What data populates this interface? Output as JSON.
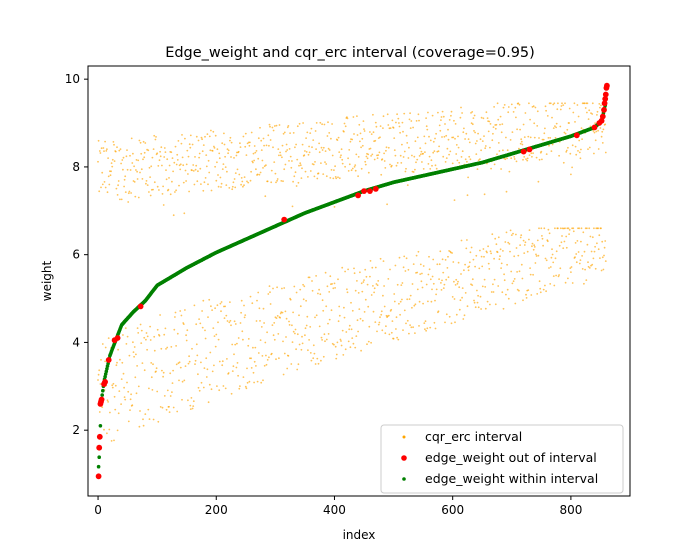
{
  "chart_data": {
    "type": "scatter",
    "title": "Edge_weight and cqr_erc interval (coverage=0.95)",
    "xlabel": "index",
    "ylabel": "weight",
    "xlim": [
      -17,
      900
    ],
    "ylim": [
      0.5,
      10.3
    ],
    "xticks": [
      0,
      200,
      400,
      600,
      800
    ],
    "yticks": [
      2,
      4,
      6,
      8,
      10
    ],
    "grid": false,
    "legend_position": "lower-right",
    "n_points": 860,
    "colors": {
      "interval": "#FFA500",
      "out": "#FF0000",
      "within": "#008000"
    },
    "series": [
      {
        "name": "cqr_erc interval",
        "marker": "dot",
        "color": "#FFA500",
        "alpha": 0.6
      },
      {
        "name": "edge_weight out of interval",
        "marker": "dot",
        "color": "#FF0000"
      },
      {
        "name": "edge_weight within interval",
        "marker": "dot",
        "color": "#008000"
      }
    ],
    "edge_weight_curve": [
      [
        0,
        0.95
      ],
      [
        3,
        1.6
      ],
      [
        5,
        2.6
      ],
      [
        10,
        3.1
      ],
      [
        20,
        3.7
      ],
      [
        40,
        4.4
      ],
      [
        60,
        4.7
      ],
      [
        80,
        4.95
      ],
      [
        100,
        5.3
      ],
      [
        150,
        5.7
      ],
      [
        200,
        6.05
      ],
      [
        250,
        6.35
      ],
      [
        300,
        6.65
      ],
      [
        350,
        6.95
      ],
      [
        400,
        7.2
      ],
      [
        450,
        7.45
      ],
      [
        500,
        7.65
      ],
      [
        550,
        7.8
      ],
      [
        600,
        7.95
      ],
      [
        650,
        8.1
      ],
      [
        700,
        8.3
      ],
      [
        750,
        8.5
      ],
      [
        800,
        8.7
      ],
      [
        840,
        8.9
      ],
      [
        852,
        9.05
      ],
      [
        858,
        9.4
      ],
      [
        860,
        9.85
      ]
    ],
    "out_of_interval": [
      [
        1,
        0.95
      ],
      [
        2,
        1.6
      ],
      [
        3,
        1.85
      ],
      [
        4,
        2.6
      ],
      [
        5,
        2.65
      ],
      [
        6,
        2.7
      ],
      [
        10,
        3.05
      ],
      [
        12,
        3.1
      ],
      [
        18,
        3.6
      ],
      [
        28,
        4.05
      ],
      [
        33,
        4.1
      ],
      [
        72,
        4.82
      ],
      [
        315,
        6.8
      ],
      [
        440,
        7.35
      ],
      [
        450,
        7.45
      ],
      [
        460,
        7.45
      ],
      [
        470,
        7.5
      ],
      [
        720,
        8.35
      ],
      [
        730,
        8.4
      ],
      [
        810,
        8.72
      ],
      [
        840,
        8.9
      ],
      [
        848,
        9.0
      ],
      [
        852,
        9.05
      ],
      [
        854,
        9.15
      ],
      [
        856,
        9.3
      ],
      [
        857,
        9.45
      ],
      [
        858,
        9.55
      ],
      [
        859,
        9.65
      ],
      [
        860,
        9.8
      ],
      [
        861,
        9.85
      ]
    ],
    "upper_band_range": [
      7.0,
      9.4
    ],
    "lower_band_range": [
      1.5,
      6.5
    ]
  }
}
